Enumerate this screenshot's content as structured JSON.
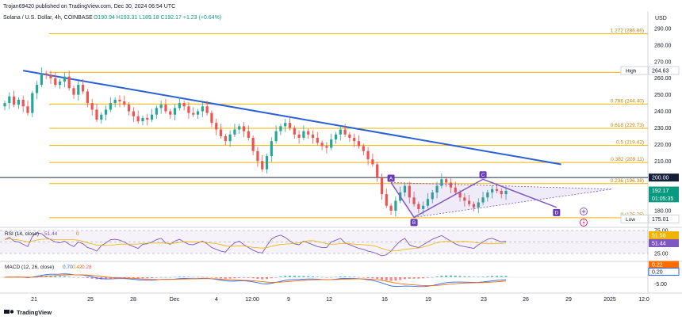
{
  "header": {
    "published": "Trojan69420 published on TradingView.com, Dec 30, 2024 06:54 UTC",
    "symbol": "Solana / U.S. Dollar, 4h, COINBASE",
    "ohlc": "O190.94 H193.31 L189.18 C192.17 +1.23 (+0.64%)"
  },
  "currency": "USD",
  "footer": {
    "brand": "TradingView"
  },
  "colors": {
    "up": "#26a69a",
    "down": "#ef5350",
    "fib": "#f0b400",
    "trendline": "#2a5fd6",
    "pattern": "#7e57c2",
    "rsi": "#7e57c2",
    "macd": "#2962ff",
    "signal": "#ff6d00"
  },
  "chart_data": {
    "type": "candlestick",
    "price_axis": {
      "min": 175,
      "max": 290,
      "ticks": [
        "290.00",
        "280.00",
        "270.00",
        "260.00",
        "250.00",
        "240.00",
        "230.00",
        "220.00",
        "210.00",
        "200.00",
        "190.00",
        "180.00"
      ]
    },
    "time_axis": {
      "ticks": [
        "21",
        "25",
        "28",
        "Dec",
        "4",
        "12:00",
        "9",
        "12",
        "16",
        "19",
        "23",
        "26",
        "29",
        "2025",
        "12:0"
      ]
    },
    "closes": [
      245,
      249,
      244,
      247,
      243,
      239,
      251,
      256,
      263,
      262,
      260,
      256,
      258,
      261,
      254,
      250,
      256,
      252,
      245,
      241,
      235,
      238,
      241,
      245,
      247,
      246,
      244,
      240,
      237,
      234,
      236,
      235,
      238,
      242,
      244,
      240,
      238,
      242,
      245,
      243,
      239,
      238,
      240,
      243,
      239,
      233,
      229,
      225,
      222,
      226,
      229,
      231,
      228,
      224,
      216,
      210,
      205,
      213,
      222,
      228,
      231,
      233,
      230,
      226,
      224,
      228,
      226,
      224,
      221,
      219,
      218,
      223,
      226,
      229,
      226,
      224,
      222,
      219,
      216,
      211,
      208,
      200,
      190,
      183,
      180,
      186,
      191,
      195,
      188,
      184,
      181,
      183,
      187,
      191,
      195,
      199,
      197,
      194,
      191,
      188,
      186,
      184,
      182,
      185,
      188,
      191,
      193,
      192,
      190,
      192
    ],
    "fib_levels": [
      {
        "ratio": "1.272",
        "label": "1.272 (286.86)",
        "price": 286.86
      },
      {
        "ratio": "1",
        "label": "1 (263...)",
        "price": 263.5
      },
      {
        "ratio": "0.786",
        "label": "0.786 (244.40)",
        "price": 244.4
      },
      {
        "ratio": "0.618",
        "label": "0.618 (229.73)",
        "price": 229.73
      },
      {
        "ratio": "0.5",
        "label": "0.5 (219.42)",
        "price": 219.42
      },
      {
        "ratio": "0.382",
        "label": "0.382 (209.11)",
        "price": 209.11
      },
      {
        "ratio": "0.236",
        "label": "0.236 (196.38)",
        "price": 196.38
      },
      {
        "ratio": "0",
        "label": "0 (175.75)",
        "price": 175.75
      }
    ],
    "price_labels": [
      {
        "text": "High",
        "value": "264.63",
        "price": 264.63,
        "style": "light"
      },
      {
        "text": "",
        "value": "200.00",
        "price": 200.0,
        "style": "dark"
      },
      {
        "text": "",
        "value": "192.17",
        "price": 192.17,
        "style": "green"
      },
      {
        "text": "",
        "value": "01:05:35",
        "price": 187.5,
        "style": "green"
      },
      {
        "text": "Low",
        "value": "175.01",
        "price": 175.01,
        "style": "light"
      }
    ],
    "trendline": {
      "from_index": 4,
      "to_index": 121,
      "from_price": 264.6,
      "to_price": 208
    },
    "horizontal_line": {
      "price": 200
    },
    "pattern_points": [
      {
        "label": "A",
        "index": 84,
        "price": 197
      },
      {
        "label": "B",
        "index": 89,
        "price": 176
      },
      {
        "label": "C",
        "index": 104,
        "price": 199
      },
      {
        "label": "D",
        "index": 120,
        "price": 182
      }
    ],
    "rsi": {
      "label": "RSI (14, close)",
      "value": "51.44",
      "extra": "0",
      "levels": [
        "75.00",
        "50.00",
        "25.00"
      ],
      "values": [
        55,
        60,
        52,
        50,
        45,
        40,
        62,
        70,
        68,
        60,
        55,
        50,
        48,
        52,
        45,
        40,
        50,
        46,
        38,
        35,
        30,
        42,
        48,
        55,
        56,
        54,
        50,
        44,
        40,
        36,
        45,
        46,
        50,
        55,
        58,
        48,
        45,
        52,
        56,
        50,
        45,
        44,
        48,
        52,
        46,
        38,
        34,
        30,
        28,
        40,
        48,
        52,
        44,
        38,
        32,
        28,
        26,
        42,
        56,
        62,
        65,
        60,
        52,
        46,
        44,
        52,
        48,
        44,
        40,
        38,
        38,
        50,
        54,
        58,
        48,
        44,
        40,
        36,
        34,
        30,
        28,
        24,
        20,
        22,
        30,
        42,
        52,
        58,
        44,
        40,
        38,
        44,
        50,
        56,
        60,
        64,
        58,
        52,
        46,
        42,
        40,
        38,
        36,
        44,
        50,
        56,
        58,
        54,
        50,
        52
      ],
      "labels": [
        "51.58",
        "51.44"
      ]
    },
    "macd": {
      "label": "MACD (12, 26, close)",
      "macd_value": "0.70",
      "signal_value": "0.42",
      "hist_value": "0.28",
      "labels": [
        "0.22",
        "0.20"
      ],
      "ticks": [
        "-5.00"
      ]
    }
  }
}
